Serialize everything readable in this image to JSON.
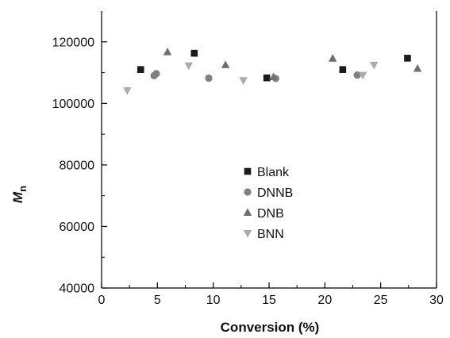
{
  "chart_data": {
    "type": "scatter",
    "xlabel": "Conversion (%)",
    "ylabel": "M",
    "ylabel_subscript": "n",
    "xlim": [
      0,
      30
    ],
    "ylim": [
      40000,
      130000
    ],
    "x_ticks": [
      0,
      5,
      10,
      15,
      20,
      25,
      30
    ],
    "y_ticks": [
      40000,
      60000,
      80000,
      100000,
      120000
    ],
    "x_tick_labels": [
      "0",
      "5",
      "10",
      "15",
      "20",
      "25",
      "30"
    ],
    "y_tick_labels": [
      "40000",
      "60000",
      "80000",
      "100000",
      "120000"
    ],
    "grid": false,
    "legend_position": "center",
    "series": [
      {
        "name": "Blank",
        "marker": "square",
        "color": "#1a1a1a",
        "points": [
          {
            "x": 3.5,
            "y": 111000
          },
          {
            "x": 8.3,
            "y": 116300
          },
          {
            "x": 14.8,
            "y": 108300
          },
          {
            "x": 21.6,
            "y": 111000
          },
          {
            "x": 27.4,
            "y": 114700
          }
        ]
      },
      {
        "name": "DNNB",
        "marker": "circle",
        "color": "#808080",
        "points": [
          {
            "x": 4.7,
            "y": 109000
          },
          {
            "x": 4.9,
            "y": 109700
          },
          {
            "x": 9.6,
            "y": 108200
          },
          {
            "x": 15.6,
            "y": 108100
          },
          {
            "x": 22.9,
            "y": 109200
          }
        ]
      },
      {
        "name": "DNB",
        "marker": "triangle-up",
        "color": "#6e6e6e",
        "points": [
          {
            "x": 5.9,
            "y": 116700
          },
          {
            "x": 11.1,
            "y": 112500
          },
          {
            "x": 15.4,
            "y": 108600
          },
          {
            "x": 20.7,
            "y": 114600
          },
          {
            "x": 28.3,
            "y": 111300
          }
        ]
      },
      {
        "name": "BNN",
        "marker": "triangle-down",
        "color": "#ababab",
        "points": [
          {
            "x": 2.3,
            "y": 104200
          },
          {
            "x": 7.8,
            "y": 112300
          },
          {
            "x": 12.7,
            "y": 107500
          },
          {
            "x": 23.4,
            "y": 109200
          },
          {
            "x": 24.4,
            "y": 112500
          }
        ]
      }
    ]
  }
}
